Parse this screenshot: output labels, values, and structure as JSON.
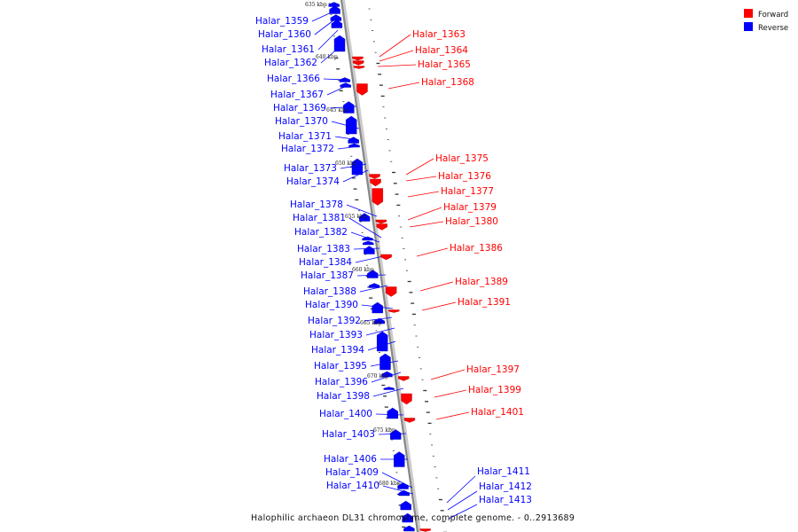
{
  "legend": {
    "items": [
      {
        "label": "Forward",
        "color": "#ff0000"
      },
      {
        "label": "Reverse",
        "color": "#0000ff"
      }
    ]
  },
  "caption": "Halophilic archaeon DL31 chromosome, complete genome. - 0..2913689",
  "colors": {
    "forward": "#ff0000",
    "reverse": "#0000ff",
    "axis": "#888888"
  },
  "scale_markers": [
    "635 kbp",
    "640 kbp",
    "645 kbp",
    "650 kbp",
    "655 kbp",
    "660 kbp",
    "665 kbp",
    "670 kbp",
    "675 kbp",
    "680 kbp"
  ],
  "genes": {
    "reverse": [
      "Halar_1359",
      "Halar_1360",
      "Halar_1361",
      "Halar_1362",
      "Halar_1366",
      "Halar_1367",
      "Halar_1369",
      "Halar_1370",
      "Halar_1371",
      "Halar_1372",
      "Halar_1373",
      "Halar_1374",
      "Halar_1378",
      "Halar_1381",
      "Halar_1382",
      "Halar_1383",
      "Halar_1384",
      "Halar_1387",
      "Halar_1388",
      "Halar_1390",
      "Halar_1392",
      "Halar_1393",
      "Halar_1394",
      "Halar_1395",
      "Halar_1396",
      "Halar_1398",
      "Halar_1400",
      "Halar_1403",
      "Halar_1406",
      "Halar_1409",
      "Halar_1410",
      "Halar_1411",
      "Halar_1412",
      "Halar_1413"
    ],
    "forward": [
      "Halar_1363",
      "Halar_1364",
      "Halar_1365",
      "Halar_1368",
      "Halar_1375",
      "Halar_1376",
      "Halar_1377",
      "Halar_1379",
      "Halar_1380",
      "Halar_1386",
      "Halar_1389",
      "Halar_1391",
      "Halar_1397",
      "Halar_1399",
      "Halar_1401"
    ]
  }
}
